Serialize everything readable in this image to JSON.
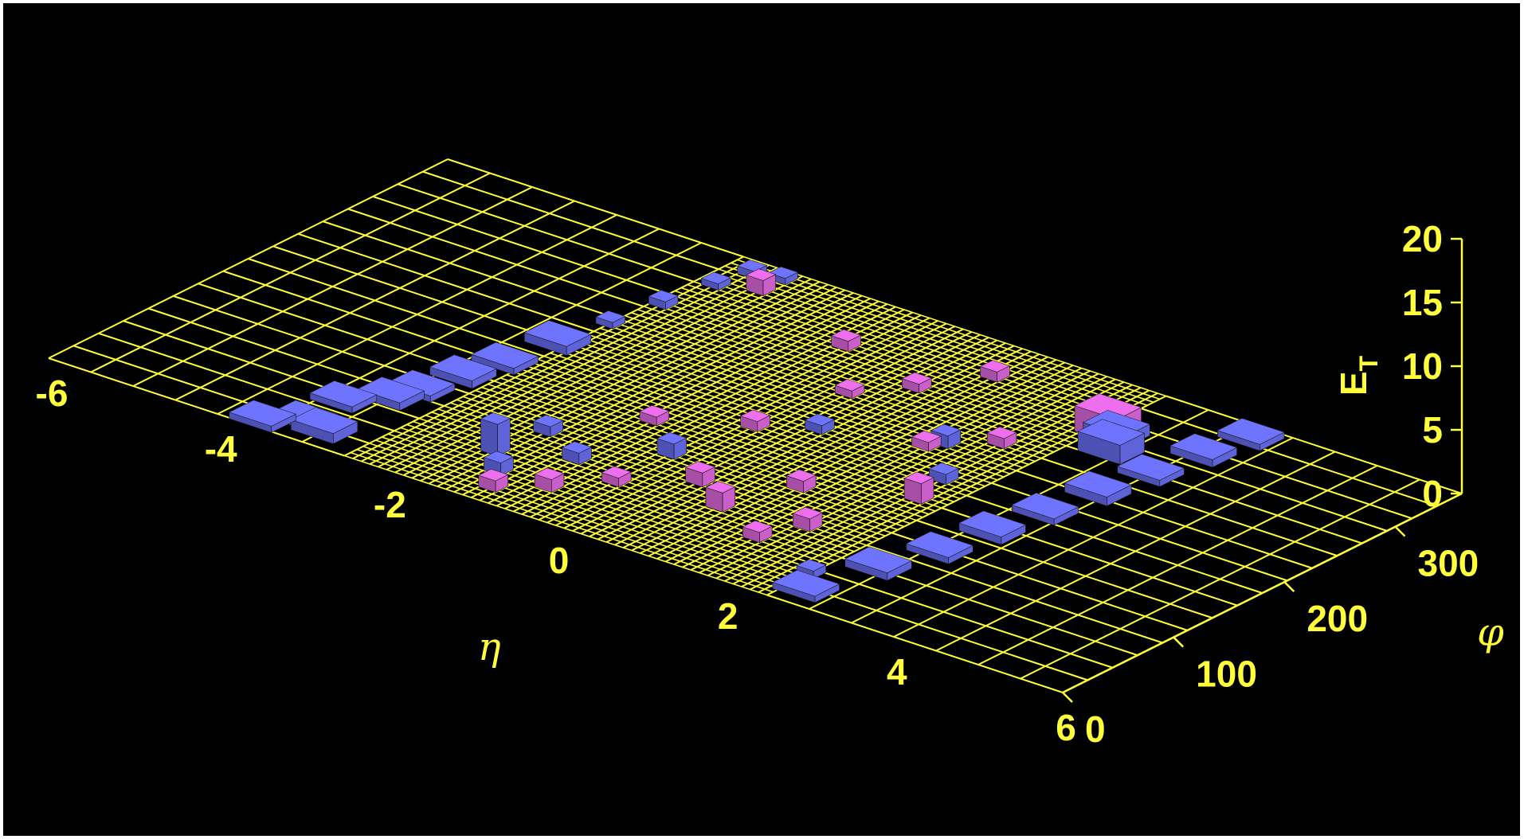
{
  "chart_data": {
    "type": "lego",
    "title": "",
    "colors": {
      "background": "#000000",
      "grid": "#ffff3c",
      "text": "#ffff3c",
      "em": "#ee6fee",
      "hadronic": "#6e74ff",
      "hadronic_dark": "#2d3ef0"
    },
    "xaxis": {
      "label": "η",
      "ticks": [
        "-6",
        "-4",
        "-2",
        "0",
        "2",
        "4",
        "6"
      ],
      "range": [
        -6,
        6
      ]
    },
    "yaxis": {
      "label": "φ",
      "ticks": [
        "0",
        "100",
        "200",
        "300"
      ],
      "range": [
        0,
        360
      ]
    },
    "zaxis": {
      "label": "E",
      "label_sub": "T",
      "ticks": [
        "0",
        "5",
        "10",
        "15",
        "20"
      ],
      "range": [
        0,
        20
      ]
    },
    "series": [
      {
        "name": "",
        "color": "#6e74ff",
        "towers": [
          {
            "eta": -3.6,
            "phi": 10,
            "et": 0.5
          },
          {
            "eta": -3.3,
            "phi": 25,
            "et": 0.5
          },
          {
            "eta": -3.0,
            "phi": 20,
            "et": 0.8
          },
          {
            "eta": -3.3,
            "phi": 60,
            "et": 0.5
          },
          {
            "eta": -3.0,
            "phi": 80,
            "et": 0.6
          },
          {
            "eta": -2.9,
            "phi": 100,
            "et": 0.5
          },
          {
            "eta": -2.8,
            "phi": 130,
            "et": 0.6
          },
          {
            "eta": -2.7,
            "phi": 160,
            "et": 0.5
          },
          {
            "eta": -2.6,
            "phi": 200,
            "et": 0.7
          },
          {
            "eta": -2.5,
            "phi": 240,
            "et": 0.5
          },
          {
            "eta": -2.4,
            "phi": 280,
            "et": 0.6
          },
          {
            "eta": -2.3,
            "phi": 320,
            "et": 0.5
          },
          {
            "eta": -2.2,
            "phi": 345,
            "et": 0.6
          },
          {
            "eta": -1.9,
            "phi": 350,
            "et": 0.5
          },
          {
            "eta": -1.5,
            "phi": 60,
            "et": 2.5
          },
          {
            "eta": -1.4,
            "phi": 100,
            "et": 0.8
          },
          {
            "eta": -1.2,
            "phi": 40,
            "et": 1.0
          },
          {
            "eta": -0.8,
            "phi": 80,
            "et": 0.9
          },
          {
            "eta": -0.2,
            "phi": 120,
            "et": 1.2
          },
          {
            "eta": 0.5,
            "phi": 200,
            "et": 0.7
          },
          {
            "eta": 1.6,
            "phi": 230,
            "et": 1.0
          },
          {
            "eta": 2.1,
            "phi": 190,
            "et": 0.8
          },
          {
            "eta": 2.5,
            "phi": 40,
            "et": 0.6
          },
          {
            "eta": 2.7,
            "phi": 20,
            "et": 0.5
          },
          {
            "eta": 2.9,
            "phi": 70,
            "et": 0.6
          },
          {
            "eta": 3.1,
            "phi": 110,
            "et": 0.5
          },
          {
            "eta": 3.2,
            "phi": 150,
            "et": 0.6
          },
          {
            "eta": 3.3,
            "phi": 190,
            "et": 0.5
          },
          {
            "eta": 3.4,
            "phi": 230,
            "et": 0.7
          },
          {
            "eta": 3.5,
            "phi": 270,
            "et": 0.5
          },
          {
            "eta": 3.6,
            "phi": 310,
            "et": 0.6
          },
          {
            "eta": 3.7,
            "phi": 345,
            "et": 0.5
          },
          {
            "eta": 2.9,
            "phi": 280,
            "et": 1.5
          },
          {
            "eta": 2.7,
            "phi": 300,
            "et": 0.9
          }
        ]
      },
      {
        "name": "",
        "color": "#ee6fee",
        "towers": [
          {
            "eta": -1.9,
            "phi": 330,
            "et": 1.2
          },
          {
            "eta": -1.0,
            "phi": 20,
            "et": 0.9
          },
          {
            "eta": -0.8,
            "phi": 150,
            "et": 0.7
          },
          {
            "eta": -0.6,
            "phi": 40,
            "et": 1.0
          },
          {
            "eta": -0.5,
            "phi": 300,
            "et": 0.8
          },
          {
            "eta": -0.2,
            "phi": 70,
            "et": 0.7
          },
          {
            "eta": 0.0,
            "phi": 180,
            "et": 0.8
          },
          {
            "eta": 0.2,
            "phi": 250,
            "et": 0.6
          },
          {
            "eta": 0.4,
            "phi": 100,
            "et": 1.1
          },
          {
            "eta": 0.6,
            "phi": 280,
            "et": 0.7
          },
          {
            "eta": 0.9,
            "phi": 80,
            "et": 1.5
          },
          {
            "eta": 1.0,
            "phi": 320,
            "et": 0.8
          },
          {
            "eta": 1.2,
            "phi": 130,
            "et": 0.9
          },
          {
            "eta": 1.5,
            "phi": 220,
            "et": 0.7
          },
          {
            "eta": 1.8,
            "phi": 90,
            "et": 1.0
          },
          {
            "eta": 2.0,
            "phi": 250,
            "et": 0.8
          },
          {
            "eta": 2.2,
            "phi": 160,
            "et": 1.6
          },
          {
            "eta": 2.4,
            "phi": 320,
            "et": 0.9
          },
          {
            "eta": 2.6,
            "phi": 300,
            "et": 2.0
          },
          {
            "eta": 1.6,
            "phi": 60,
            "et": 0.8
          }
        ]
      }
    ]
  }
}
